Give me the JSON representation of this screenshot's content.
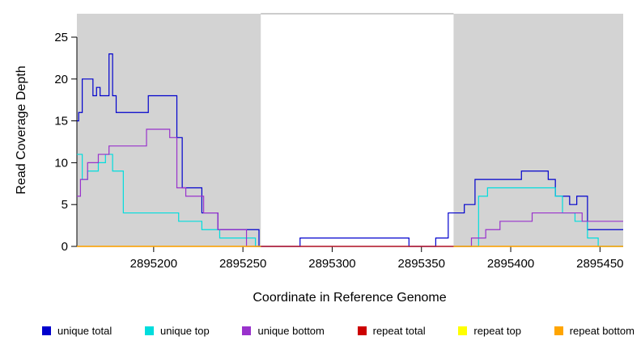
{
  "chart_data": {
    "type": "line",
    "step": "after",
    "title": "",
    "xlabel": "Coordinate in Reference Genome",
    "ylabel": "Read Coverage Depth",
    "x_domain": [
      2895157,
      2895463
    ],
    "y_domain": [
      0,
      27.8
    ],
    "x_ticks": [
      2895200,
      2895250,
      2895300,
      2895350,
      2895400,
      2895450
    ],
    "y_ticks": [
      0,
      5,
      10,
      15,
      20,
      25
    ],
    "grid": false,
    "background_shading": [
      {
        "x0": 2895157,
        "x1": 2895260,
        "color": "#d3d3d3"
      },
      {
        "x0": 2895368,
        "x1": 2895463,
        "color": "#d3d3d3"
      }
    ],
    "series": [
      {
        "id": "unique-total",
        "name": "unique total",
        "color": "#0000cd",
        "segments": [
          [
            [
              2895157,
              15
            ],
            [
              2895158,
              16
            ],
            [
              2895160,
              20
            ],
            [
              2895166,
              18
            ],
            [
              2895168,
              19
            ],
            [
              2895170,
              18
            ],
            [
              2895175,
              23
            ],
            [
              2895177,
              18
            ],
            [
              2895179,
              16
            ],
            [
              2895197,
              18
            ],
            [
              2895213,
              13
            ],
            [
              2895216,
              7
            ],
            [
              2895227,
              4
            ],
            [
              2895236,
              2
            ],
            [
              2895259,
              0
            ],
            [
              2895282,
              1
            ],
            [
              2895343,
              0
            ],
            [
              2895358,
              1
            ],
            [
              2895365,
              4
            ],
            [
              2895374,
              5
            ],
            [
              2895380,
              8
            ],
            [
              2895406,
              9
            ],
            [
              2895421,
              8
            ],
            [
              2895425,
              6
            ],
            [
              2895433,
              5
            ],
            [
              2895437,
              6
            ],
            [
              2895443,
              2
            ],
            [
              2895463,
              2
            ]
          ]
        ]
      },
      {
        "id": "unique-top",
        "name": "unique top",
        "color": "#00dddd",
        "segments": [
          [
            [
              2895157,
              11
            ],
            [
              2895160,
              8
            ],
            [
              2895163,
              9
            ],
            [
              2895169,
              10
            ],
            [
              2895173,
              11
            ],
            [
              2895177,
              9
            ],
            [
              2895183,
              4
            ],
            [
              2895214,
              3
            ],
            [
              2895227,
              2
            ],
            [
              2895237,
              1
            ],
            [
              2895257,
              0
            ],
            [
              2895382,
              6
            ],
            [
              2895387,
              7
            ],
            [
              2895425,
              6
            ],
            [
              2895429,
              4
            ],
            [
              2895436,
              3
            ],
            [
              2895443,
              1
            ],
            [
              2895449,
              0
            ],
            [
              2895463,
              0
            ]
          ]
        ]
      },
      {
        "id": "unique-bottom",
        "name": "unique bottom",
        "color": "#9932cc",
        "segments": [
          [
            [
              2895157,
              6
            ],
            [
              2895159,
              8
            ],
            [
              2895163,
              10
            ],
            [
              2895169,
              11
            ],
            [
              2895175,
              12
            ],
            [
              2895196,
              14
            ],
            [
              2895209,
              13
            ],
            [
              2895213,
              7
            ],
            [
              2895218,
              6
            ],
            [
              2895228,
              4
            ],
            [
              2895236,
              2
            ],
            [
              2895252,
              0
            ],
            [
              2895378,
              1
            ],
            [
              2895386,
              2
            ],
            [
              2895394,
              3
            ],
            [
              2895412,
              4
            ],
            [
              2895440,
              3
            ],
            [
              2895463,
              3
            ]
          ]
        ]
      },
      {
        "id": "repeat-total",
        "name": "repeat total",
        "color": "#cc0000",
        "segments": [
          [
            [
              2895157,
              0
            ],
            [
              2895463,
              0
            ]
          ]
        ]
      },
      {
        "id": "repeat-top",
        "name": "repeat top",
        "color": "#ffff00",
        "segments": [
          [
            [
              2895157,
              0
            ],
            [
              2895260,
              0
            ]
          ],
          [
            [
              2895368,
              0
            ],
            [
              2895463,
              0
            ]
          ]
        ]
      },
      {
        "id": "repeat-bottom",
        "name": "repeat bottom",
        "color": "#ffa500",
        "segments": [
          [
            [
              2895157,
              0
            ],
            [
              2895260,
              0
            ]
          ],
          [
            [
              2895368,
              0
            ],
            [
              2895463,
              0
            ]
          ]
        ]
      }
    ]
  },
  "legend": {
    "items": [
      {
        "label": "unique total",
        "color": "#0000cd"
      },
      {
        "label": "unique top",
        "color": "#00dddd"
      },
      {
        "label": "unique bottom",
        "color": "#9932cc"
      },
      {
        "label": "repeat total",
        "color": "#cc0000"
      },
      {
        "label": "repeat top",
        "color": "#ffff00"
      },
      {
        "label": "repeat bottom",
        "color": "#ffa500"
      }
    ]
  }
}
